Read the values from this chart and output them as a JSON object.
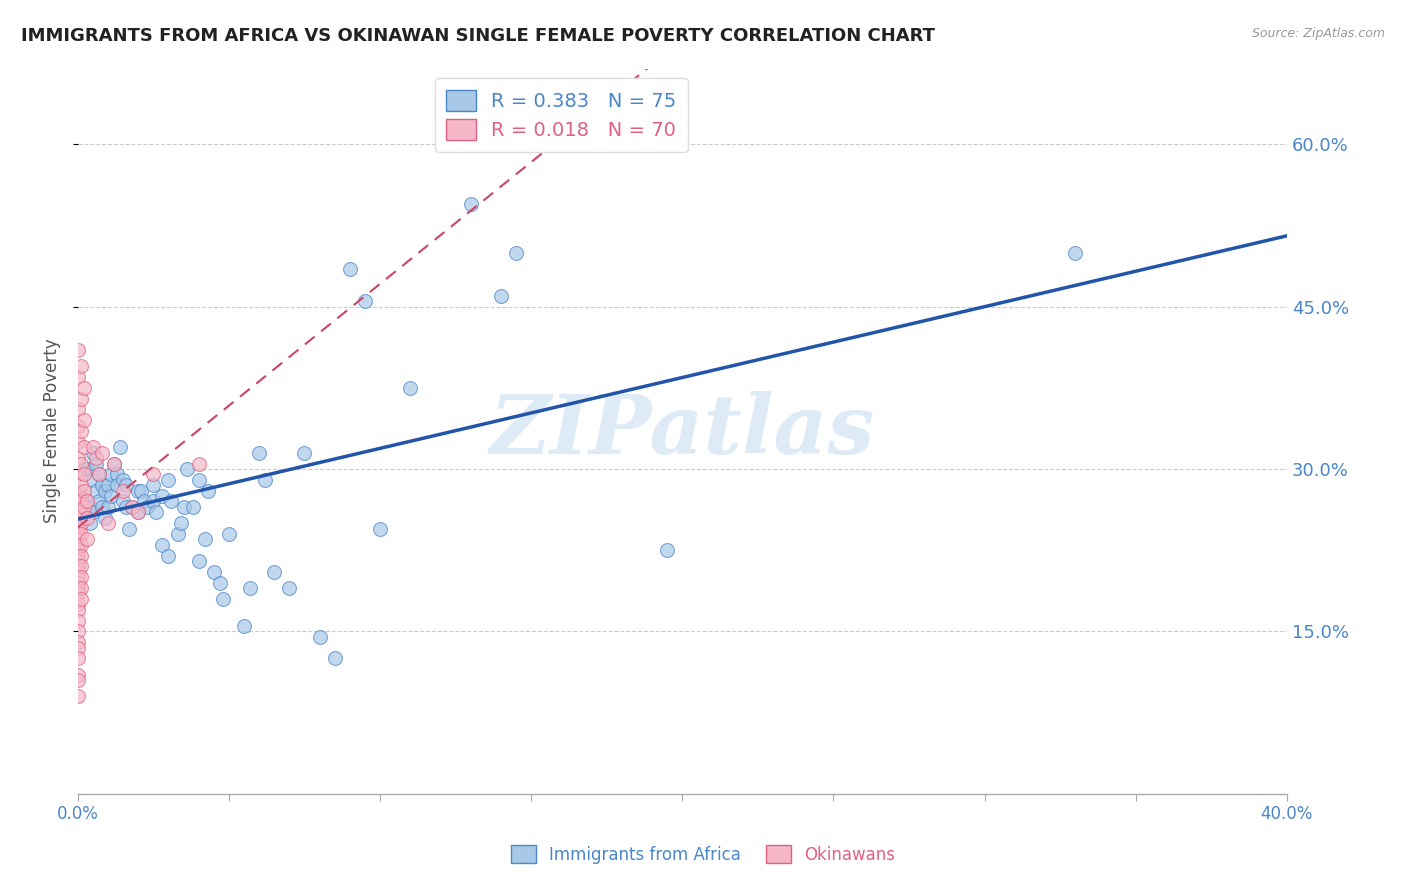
{
  "title": "IMMIGRANTS FROM AFRICA VS OKINAWAN SINGLE FEMALE POVERTY CORRELATION CHART",
  "source": "Source: ZipAtlas.com",
  "ylabel": "Single Female Poverty",
  "xlim": [
    0.0,
    0.4
  ],
  "ylim": [
    0.0,
    0.67
  ],
  "xticks": [
    0.0,
    0.05,
    0.1,
    0.15,
    0.2,
    0.25,
    0.3,
    0.35,
    0.4
  ],
  "yticks": [
    0.15,
    0.3,
    0.45,
    0.6
  ],
  "blue_R": 0.383,
  "blue_N": 75,
  "pink_R": 0.018,
  "pink_N": 70,
  "blue_points": [
    [
      0.001,
      0.275
    ],
    [
      0.002,
      0.3
    ],
    [
      0.003,
      0.27
    ],
    [
      0.003,
      0.3
    ],
    [
      0.004,
      0.25
    ],
    [
      0.004,
      0.265
    ],
    [
      0.005,
      0.29
    ],
    [
      0.005,
      0.315
    ],
    [
      0.005,
      0.26
    ],
    [
      0.006,
      0.305
    ],
    [
      0.006,
      0.28
    ],
    [
      0.007,
      0.27
    ],
    [
      0.007,
      0.295
    ],
    [
      0.008,
      0.285
    ],
    [
      0.008,
      0.265
    ],
    [
      0.009,
      0.28
    ],
    [
      0.009,
      0.255
    ],
    [
      0.01,
      0.265
    ],
    [
      0.01,
      0.285
    ],
    [
      0.011,
      0.295
    ],
    [
      0.011,
      0.275
    ],
    [
      0.012,
      0.305
    ],
    [
      0.013,
      0.295
    ],
    [
      0.013,
      0.285
    ],
    [
      0.014,
      0.32
    ],
    [
      0.015,
      0.29
    ],
    [
      0.015,
      0.27
    ],
    [
      0.016,
      0.265
    ],
    [
      0.016,
      0.285
    ],
    [
      0.017,
      0.245
    ],
    [
      0.018,
      0.265
    ],
    [
      0.02,
      0.26
    ],
    [
      0.02,
      0.28
    ],
    [
      0.021,
      0.28
    ],
    [
      0.022,
      0.27
    ],
    [
      0.023,
      0.265
    ],
    [
      0.025,
      0.285
    ],
    [
      0.025,
      0.27
    ],
    [
      0.026,
      0.26
    ],
    [
      0.028,
      0.23
    ],
    [
      0.028,
      0.275
    ],
    [
      0.03,
      0.29
    ],
    [
      0.03,
      0.22
    ],
    [
      0.031,
      0.27
    ],
    [
      0.033,
      0.24
    ],
    [
      0.034,
      0.25
    ],
    [
      0.035,
      0.265
    ],
    [
      0.036,
      0.3
    ],
    [
      0.038,
      0.265
    ],
    [
      0.04,
      0.215
    ],
    [
      0.04,
      0.29
    ],
    [
      0.042,
      0.235
    ],
    [
      0.043,
      0.28
    ],
    [
      0.045,
      0.205
    ],
    [
      0.047,
      0.195
    ],
    [
      0.048,
      0.18
    ],
    [
      0.05,
      0.24
    ],
    [
      0.055,
      0.155
    ],
    [
      0.057,
      0.19
    ],
    [
      0.06,
      0.315
    ],
    [
      0.062,
      0.29
    ],
    [
      0.065,
      0.205
    ],
    [
      0.07,
      0.19
    ],
    [
      0.075,
      0.315
    ],
    [
      0.08,
      0.145
    ],
    [
      0.085,
      0.125
    ],
    [
      0.09,
      0.485
    ],
    [
      0.095,
      0.455
    ],
    [
      0.1,
      0.245
    ],
    [
      0.11,
      0.375
    ],
    [
      0.13,
      0.545
    ],
    [
      0.14,
      0.46
    ],
    [
      0.145,
      0.5
    ],
    [
      0.195,
      0.225
    ],
    [
      0.33,
      0.5
    ]
  ],
  "pink_points": [
    [
      0.0,
      0.41
    ],
    [
      0.0,
      0.385
    ],
    [
      0.0,
      0.355
    ],
    [
      0.0,
      0.34
    ],
    [
      0.0,
      0.325
    ],
    [
      0.0,
      0.31
    ],
    [
      0.0,
      0.295
    ],
    [
      0.0,
      0.28
    ],
    [
      0.0,
      0.275
    ],
    [
      0.0,
      0.265
    ],
    [
      0.0,
      0.255
    ],
    [
      0.0,
      0.25
    ],
    [
      0.0,
      0.245
    ],
    [
      0.0,
      0.24
    ],
    [
      0.0,
      0.235
    ],
    [
      0.0,
      0.23
    ],
    [
      0.0,
      0.225
    ],
    [
      0.0,
      0.22
    ],
    [
      0.0,
      0.215
    ],
    [
      0.0,
      0.21
    ],
    [
      0.0,
      0.205
    ],
    [
      0.0,
      0.2
    ],
    [
      0.0,
      0.195
    ],
    [
      0.0,
      0.19
    ],
    [
      0.0,
      0.185
    ],
    [
      0.0,
      0.175
    ],
    [
      0.0,
      0.17
    ],
    [
      0.0,
      0.16
    ],
    [
      0.0,
      0.15
    ],
    [
      0.0,
      0.14
    ],
    [
      0.0,
      0.135
    ],
    [
      0.0,
      0.125
    ],
    [
      0.0,
      0.11
    ],
    [
      0.0,
      0.105
    ],
    [
      0.0,
      0.09
    ],
    [
      0.001,
      0.395
    ],
    [
      0.001,
      0.365
    ],
    [
      0.001,
      0.335
    ],
    [
      0.001,
      0.305
    ],
    [
      0.001,
      0.285
    ],
    [
      0.001,
      0.27
    ],
    [
      0.001,
      0.26
    ],
    [
      0.001,
      0.25
    ],
    [
      0.001,
      0.24
    ],
    [
      0.001,
      0.23
    ],
    [
      0.001,
      0.22
    ],
    [
      0.001,
      0.21
    ],
    [
      0.001,
      0.2
    ],
    [
      0.001,
      0.19
    ],
    [
      0.001,
      0.18
    ],
    [
      0.002,
      0.375
    ],
    [
      0.002,
      0.345
    ],
    [
      0.002,
      0.32
    ],
    [
      0.002,
      0.295
    ],
    [
      0.002,
      0.28
    ],
    [
      0.002,
      0.265
    ],
    [
      0.003,
      0.27
    ],
    [
      0.003,
      0.255
    ],
    [
      0.003,
      0.235
    ],
    [
      0.005,
      0.32
    ],
    [
      0.006,
      0.31
    ],
    [
      0.007,
      0.295
    ],
    [
      0.008,
      0.315
    ],
    [
      0.01,
      0.25
    ],
    [
      0.012,
      0.305
    ],
    [
      0.015,
      0.28
    ],
    [
      0.018,
      0.265
    ],
    [
      0.02,
      0.26
    ],
    [
      0.025,
      0.295
    ],
    [
      0.04,
      0.305
    ]
  ],
  "blue_color": "#a8c8e8",
  "pink_color": "#f4b8c8",
  "blue_edge_color": "#4a86c8",
  "pink_edge_color": "#e06080",
  "blue_line_color": "#2255aa",
  "pink_line_color": "#cc4466",
  "watermark_color": "#c8dff0",
  "watermark_text": "ZIPatlas",
  "background_color": "#ffffff",
  "grid_color": "#cccccc",
  "title_color": "#222222",
  "axis_label_color": "#555555",
  "tick_color_x": "#888888",
  "tick_color_y": "#4a86c8"
}
